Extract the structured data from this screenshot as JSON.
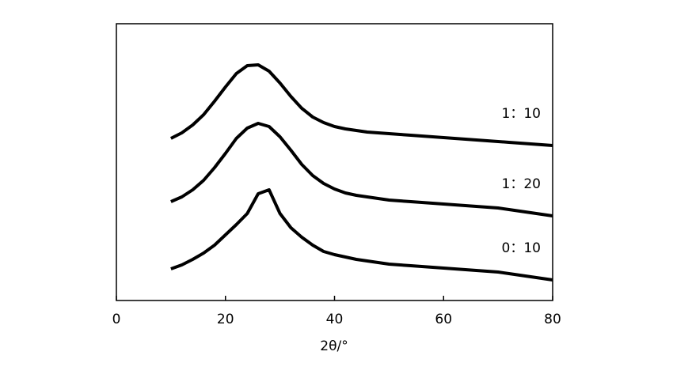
{
  "chart_data": {
    "type": "line",
    "x_label": "2θ/°",
    "x": [
      10,
      12,
      14,
      16,
      18,
      20,
      22,
      24,
      26,
      28,
      30,
      32,
      34,
      36,
      38,
      40,
      42,
      44,
      46,
      48,
      50,
      52,
      54,
      56,
      58,
      60,
      62,
      64,
      66,
      68,
      70,
      72,
      74,
      76,
      78,
      80
    ],
    "series": [
      {
        "name": "1：10",
        "color": "#000000",
        "values": [
          205,
          212,
          222,
          235,
          252,
          270,
          287,
          297,
          298,
          290,
          275,
          258,
          243,
          232,
          225,
          220,
          217,
          215,
          213,
          212,
          211,
          210,
          209,
          208,
          207,
          206,
          205,
          204,
          203,
          202,
          201,
          200,
          199,
          198,
          197,
          196
        ]
      },
      {
        "name": "1：20",
        "color": "#000000",
        "values": [
          125,
          131,
          140,
          152,
          168,
          186,
          205,
          218,
          224,
          220,
          207,
          190,
          172,
          158,
          148,
          141,
          136,
          133,
          131,
          129,
          127,
          126,
          125,
          124,
          123,
          122,
          121,
          120,
          119,
          118,
          117,
          115,
          113,
          111,
          109,
          107
        ]
      },
      {
        "name": "0：10",
        "color": "#000000",
        "values": [
          40,
          45,
          52,
          60,
          70,
          83,
          96,
          110,
          135,
          140,
          110,
          92,
          80,
          70,
          62,
          58,
          55,
          52,
          50,
          48,
          46,
          45,
          44,
          43,
          42,
          41,
          40,
          39,
          38,
          37,
          36,
          34,
          32,
          30,
          28,
          26
        ]
      }
    ],
    "xlim": [
      0,
      80
    ],
    "xticks": [
      0,
      20,
      40,
      60,
      80
    ],
    "ylim": [
      0,
      350
    ]
  }
}
